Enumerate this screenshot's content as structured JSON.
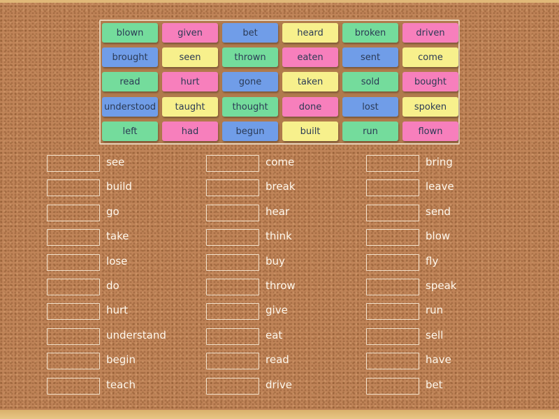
{
  "colors": {
    "green": "#74dc9c",
    "pink": "#f77fbc",
    "blue": "#709de8",
    "yellow": "#f7f08c"
  },
  "tiles": [
    [
      {
        "text": "blown",
        "color": "green"
      },
      {
        "text": "given",
        "color": "pink"
      },
      {
        "text": "bet",
        "color": "blue"
      },
      {
        "text": "heard",
        "color": "yellow"
      },
      {
        "text": "broken",
        "color": "green"
      },
      {
        "text": "driven",
        "color": "pink"
      }
    ],
    [
      {
        "text": "brought",
        "color": "blue"
      },
      {
        "text": "seen",
        "color": "yellow"
      },
      {
        "text": "thrown",
        "color": "green"
      },
      {
        "text": "eaten",
        "color": "pink"
      },
      {
        "text": "sent",
        "color": "blue"
      },
      {
        "text": "come",
        "color": "yellow"
      }
    ],
    [
      {
        "text": "read",
        "color": "green"
      },
      {
        "text": "hurt",
        "color": "pink"
      },
      {
        "text": "gone",
        "color": "blue"
      },
      {
        "text": "taken",
        "color": "yellow"
      },
      {
        "text": "sold",
        "color": "green"
      },
      {
        "text": "bought",
        "color": "pink"
      }
    ],
    [
      {
        "text": "understood",
        "color": "blue"
      },
      {
        "text": "taught",
        "color": "yellow"
      },
      {
        "text": "thought",
        "color": "green"
      },
      {
        "text": "done",
        "color": "pink"
      },
      {
        "text": "lost",
        "color": "blue"
      },
      {
        "text": "spoken",
        "color": "yellow"
      }
    ],
    [
      {
        "text": "left",
        "color": "green"
      },
      {
        "text": "had",
        "color": "pink"
      },
      {
        "text": "begun",
        "color": "blue"
      },
      {
        "text": "built",
        "color": "yellow"
      },
      {
        "text": "run",
        "color": "green"
      },
      {
        "text": "flown",
        "color": "pink"
      }
    ]
  ],
  "targets": [
    [
      "see",
      "build",
      "go",
      "take",
      "lose",
      "do",
      "hurt",
      "understand",
      "begin",
      "teach"
    ],
    [
      "come",
      "break",
      "hear",
      "think",
      "buy",
      "throw",
      "give",
      "eat",
      "read",
      "drive"
    ],
    [
      "bring",
      "leave",
      "send",
      "blow",
      "fly",
      "speak",
      "run",
      "sell",
      "have",
      "bet"
    ]
  ]
}
